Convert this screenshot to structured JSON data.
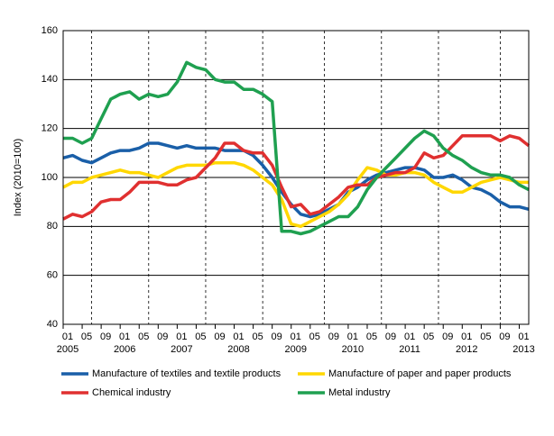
{
  "chart_data": {
    "type": "line",
    "ylabel": "Index (2010=100)",
    "x": [
      "2005-01",
      "2005-03",
      "2005-05",
      "2005-07",
      "2005-09",
      "2005-11",
      "2006-01",
      "2006-03",
      "2006-05",
      "2006-07",
      "2006-09",
      "2006-11",
      "2007-01",
      "2007-03",
      "2007-05",
      "2007-07",
      "2007-09",
      "2007-11",
      "2008-01",
      "2008-03",
      "2008-05",
      "2008-07",
      "2008-09",
      "2008-11",
      "2009-01",
      "2009-03",
      "2009-05",
      "2009-07",
      "2009-09",
      "2009-11",
      "2010-01",
      "2010-03",
      "2010-05",
      "2010-07",
      "2010-09",
      "2010-11",
      "2011-01",
      "2011-03",
      "2011-05",
      "2011-07",
      "2011-09",
      "2011-11",
      "2012-01",
      "2012-03",
      "2012-05",
      "2012-07",
      "2012-09",
      "2012-11",
      "2013-01",
      "2013-03"
    ],
    "series": [
      {
        "name": "Manufacture of textiles and textile products",
        "color": "#1a5fa8",
        "values": [
          108,
          109,
          107,
          106,
          108,
          110,
          111,
          111,
          112,
          114,
          114,
          113,
          112,
          113,
          112,
          112,
          112,
          111,
          111,
          111,
          109,
          105,
          100,
          94,
          89,
          85,
          84,
          85,
          87,
          89,
          94,
          96,
          99,
          101,
          102,
          103,
          104,
          104,
          103,
          100,
          100,
          101,
          99,
          96,
          95,
          93,
          90,
          88,
          88,
          87
        ]
      },
      {
        "name": "Manufacture of paper and paper products",
        "color": "#ffd700",
        "values": [
          96,
          98,
          98,
          100,
          101,
          102,
          103,
          102,
          102,
          101,
          100,
          102,
          104,
          105,
          105,
          105,
          106,
          106,
          106,
          105,
          103,
          100,
          97,
          91,
          81,
          80,
          82,
          84,
          86,
          89,
          93,
          99,
          104,
          103,
          101,
          101,
          102,
          102,
          101,
          98,
          96,
          94,
          94,
          96,
          98,
          99,
          100,
          99,
          98,
          98
        ]
      },
      {
        "name": "Chemical industry",
        "color": "#e03030",
        "values": [
          83,
          85,
          84,
          86,
          90,
          91,
          91,
          94,
          98,
          98,
          98,
          97,
          97,
          99,
          100,
          104,
          108,
          114,
          114,
          111,
          110,
          110,
          105,
          96,
          88,
          89,
          85,
          86,
          89,
          92,
          96,
          97,
          97,
          100,
          101,
          102,
          102,
          104,
          110,
          108,
          109,
          113,
          117,
          117,
          117,
          117,
          115,
          117,
          116,
          113
        ]
      },
      {
        "name": "Metal industry",
        "color": "#1fa050",
        "values": [
          116,
          116,
          114,
          116,
          124,
          132,
          134,
          135,
          132,
          134,
          133,
          134,
          139,
          147,
          145,
          144,
          140,
          139,
          139,
          136,
          136,
          134,
          131,
          78,
          78,
          77,
          78,
          80,
          82,
          84,
          84,
          88,
          95,
          100,
          104,
          108,
          112,
          116,
          119,
          117,
          112,
          109,
          107,
          104,
          102,
          101,
          101,
          100,
          97,
          95
        ]
      }
    ],
    "xlim": [
      "2005-01",
      "2013-03"
    ],
    "xticks": [
      {
        "value": "2005-01",
        "label": "01"
      },
      {
        "value": "2005-05",
        "label": "05"
      },
      {
        "value": "2005-09",
        "label": "09"
      },
      {
        "value": "2006-01",
        "label": "01"
      },
      {
        "value": "2006-05",
        "label": "05"
      },
      {
        "value": "2006-09",
        "label": "09"
      },
      {
        "value": "2007-01",
        "label": "01"
      },
      {
        "value": "2007-05",
        "label": "05"
      },
      {
        "value": "2007-09",
        "label": "09"
      },
      {
        "value": "2008-01",
        "label": "01"
      },
      {
        "value": "2008-05",
        "label": "05"
      },
      {
        "value": "2008-09",
        "label": "09"
      },
      {
        "value": "2009-01",
        "label": "01"
      },
      {
        "value": "2009-05",
        "label": "05"
      },
      {
        "value": "2009-09",
        "label": "09"
      },
      {
        "value": "2010-01",
        "label": "01"
      },
      {
        "value": "2010-05",
        "label": "05"
      },
      {
        "value": "2010-09",
        "label": "09"
      },
      {
        "value": "2011-01",
        "label": "01"
      },
      {
        "value": "2011-05",
        "label": "05"
      },
      {
        "value": "2011-09",
        "label": "09"
      },
      {
        "value": "2012-01",
        "label": "01"
      },
      {
        "value": "2012-05",
        "label": "05"
      },
      {
        "value": "2012-09",
        "label": "09"
      },
      {
        "value": "2013-01",
        "label": "01"
      }
    ],
    "year_labels": [
      {
        "value": "2005-01",
        "label": "2005"
      },
      {
        "value": "2006-01",
        "label": "2006"
      },
      {
        "value": "2007-01",
        "label": "2007"
      },
      {
        "value": "2008-01",
        "label": "2008"
      },
      {
        "value": "2009-01",
        "label": "2009"
      },
      {
        "value": "2010-01",
        "label": "2010"
      },
      {
        "value": "2011-01",
        "label": "2011"
      },
      {
        "value": "2012-01",
        "label": "2012"
      },
      {
        "value": "2013-01",
        "label": "2013"
      }
    ],
    "xgrid": [
      "2005-07",
      "2006-07",
      "2007-07",
      "2008-07",
      "2009-08",
      "2010-08",
      "2011-08",
      "2012-09"
    ],
    "ylim": [
      40,
      160
    ],
    "yticks": [
      40,
      60,
      80,
      100,
      120,
      140,
      160
    ],
    "grid": true
  }
}
